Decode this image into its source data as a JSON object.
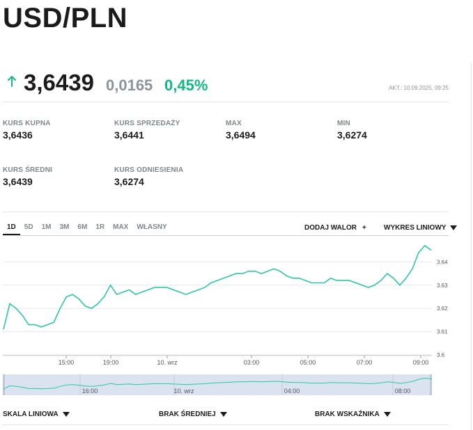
{
  "header": {
    "title": "USD/PLN"
  },
  "quote": {
    "direction_icon": "arrow-up-icon",
    "price": "3,6439",
    "change": "0,0165",
    "change_pct": "0,45%",
    "updated": "AKT.: 10.09.2025, 09:25"
  },
  "stats": [
    {
      "label": "KURS KUPNA",
      "value": "3,6436"
    },
    {
      "label": "KURS SPRZEDAŻY",
      "value": "3,6441"
    },
    {
      "label": "MAX",
      "value": "3,6494"
    },
    {
      "label": "MIN",
      "value": "3,6274"
    },
    {
      "label": "KURS ŚREDNI",
      "value": "3,6439"
    },
    {
      "label": "KURS ODNIESIENIA",
      "value": "3,6274"
    }
  ],
  "ranges": [
    "1D",
    "5D",
    "1M",
    "3M",
    "6M",
    "1R",
    "MAX",
    "WŁASNY"
  ],
  "active_range": "1D",
  "controls": {
    "add_walor": "DODAJ WALOR",
    "add_plus": "+",
    "chart_type": "WYKRES LINIOWY",
    "scale": "SKALA LINIOWA",
    "average": "BRAK ŚREDNIEJ",
    "indicator": "BRAK WSKAŹNIKA"
  },
  "colors": {
    "accent": "#12b886",
    "line": "#2cc6a6",
    "navigator_bg": "#dbe3f1"
  },
  "chart_data": {
    "type": "line",
    "y_ticks": [
      "3.64",
      "3.63",
      "3.62",
      "3.61",
      "3.6"
    ],
    "x_ticks": [
      "15:00",
      "19:00",
      "10. wrz",
      "03:00",
      "05:00",
      "07:00",
      "09:00"
    ],
    "navigator_ticks": [
      "16:00",
      "20:00",
      "10. wrz",
      "04:00",
      "08:00"
    ],
    "ylim": [
      3.6,
      3.6494
    ],
    "grid": true,
    "series": [
      {
        "values": [
          3.611,
          3.622,
          3.62,
          3.617,
          3.613,
          3.613,
          3.612,
          3.613,
          3.614,
          3.62,
          3.625,
          3.626,
          3.624,
          3.621,
          3.62,
          3.622,
          3.625,
          3.63,
          3.626,
          3.627,
          3.628,
          3.626,
          3.627,
          3.628,
          3.629,
          3.629,
          3.629,
          3.628,
          3.627,
          3.626,
          3.627,
          3.628,
          3.629,
          3.631,
          3.632,
          3.633,
          3.634,
          3.635,
          3.635,
          3.636,
          3.636,
          3.635,
          3.636,
          3.637,
          3.636,
          3.634,
          3.633,
          3.633,
          3.632,
          3.631,
          3.631,
          3.631,
          3.633,
          3.632,
          3.632,
          3.632,
          3.631,
          3.63,
          3.629,
          3.63,
          3.632,
          3.635,
          3.633,
          3.63,
          3.633,
          3.637,
          3.644,
          3.647,
          3.645
        ]
      }
    ]
  }
}
